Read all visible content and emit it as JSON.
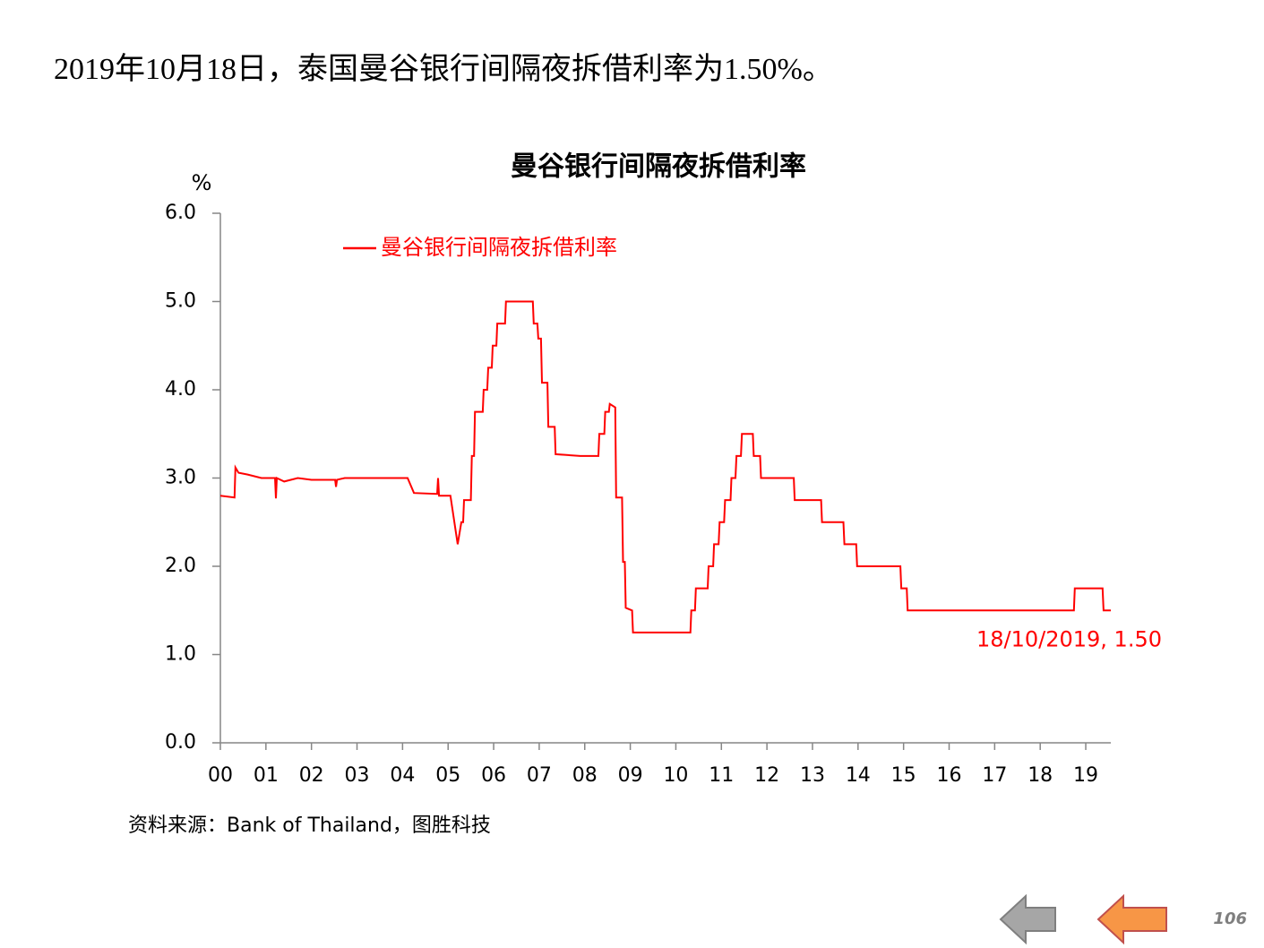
{
  "heading": "2019年10月18日，泰国曼谷银行间隔夜拆借利率为1.50%。",
  "chart_data": {
    "type": "line",
    "title": "曼谷银行间隔夜拆借利率",
    "y_unit": "%",
    "legend": "upper left",
    "annotation": "18/10/2019, 1.50",
    "xlim": [
      2000,
      2019.55
    ],
    "xticks": [
      {
        "value": 2000,
        "label": "00"
      },
      {
        "value": 2001,
        "label": "01"
      },
      {
        "value": 2002,
        "label": "02"
      },
      {
        "value": 2003,
        "label": "03"
      },
      {
        "value": 2004,
        "label": "04"
      },
      {
        "value": 2005,
        "label": "05"
      },
      {
        "value": 2006,
        "label": "06"
      },
      {
        "value": 2007,
        "label": "07"
      },
      {
        "value": 2008,
        "label": "08"
      },
      {
        "value": 2009,
        "label": "09"
      },
      {
        "value": 2010,
        "label": "10"
      },
      {
        "value": 2011,
        "label": "11"
      },
      {
        "value": 2012,
        "label": "12"
      },
      {
        "value": 2013,
        "label": "13"
      },
      {
        "value": 2014,
        "label": "14"
      },
      {
        "value": 2015,
        "label": "15"
      },
      {
        "value": 2016,
        "label": "16"
      },
      {
        "value": 2017,
        "label": "17"
      },
      {
        "value": 2018,
        "label": "18"
      },
      {
        "value": 2019,
        "label": "19"
      }
    ],
    "ylim": [
      0,
      6
    ],
    "yticks": [
      {
        "value": 0,
        "label": "0.0"
      },
      {
        "value": 1,
        "label": "1.0"
      },
      {
        "value": 2,
        "label": "2.0"
      },
      {
        "value": 3,
        "label": "3.0"
      },
      {
        "value": 4,
        "label": "4.0"
      },
      {
        "value": 5,
        "label": "5.0"
      },
      {
        "value": 6,
        "label": "6.0"
      }
    ],
    "series": [
      {
        "name": "曼谷银行间隔夜拆借利率",
        "color": "#ff0000",
        "x": [
          2000.0,
          2000.31,
          2000.33,
          2000.4,
          2000.6,
          2000.9,
          2001.2,
          2001.22,
          2001.24,
          2001.4,
          2001.7,
          2002.0,
          2002.3,
          2002.52,
          2002.54,
          2002.56,
          2002.73,
          2004.11,
          2004.25,
          2004.76,
          2004.78,
          2004.8,
          2005.05,
          2005.21,
          2005.29,
          2005.33,
          2005.35,
          2005.5,
          2005.52,
          2005.57,
          2005.59,
          2005.76,
          2005.78,
          2005.86,
          2005.88,
          2005.96,
          2005.98,
          2006.06,
          2006.08,
          2006.25,
          2006.27,
          2006.86,
          2006.88,
          2006.96,
          2006.98,
          2007.04,
          2007.06,
          2007.18,
          2007.2,
          2007.34,
          2007.36,
          2007.9,
          2008.3,
          2008.32,
          2008.43,
          2008.45,
          2008.53,
          2008.55,
          2008.67,
          2008.69,
          2008.82,
          2008.84,
          2008.88,
          2008.9,
          2009.04,
          2009.06,
          2010.32,
          2010.34,
          2010.42,
          2010.44,
          2010.7,
          2010.72,
          2010.82,
          2010.84,
          2010.94,
          2010.96,
          2011.06,
          2011.08,
          2011.2,
          2011.22,
          2011.31,
          2011.33,
          2011.43,
          2011.45,
          2011.69,
          2011.71,
          2011.85,
          2011.87,
          2012.59,
          2012.61,
          2013.19,
          2013.21,
          2013.68,
          2013.7,
          2013.96,
          2013.98,
          2014.93,
          2014.95,
          2015.07,
          2015.09,
          2018.74,
          2018.76,
          2019.37,
          2019.39,
          2019.55
        ],
        "values": [
          2.8,
          2.78,
          3.12,
          3.06,
          3.04,
          3.0,
          3.0,
          2.77,
          3.0,
          2.96,
          3.0,
          2.98,
          2.98,
          2.98,
          2.9,
          2.98,
          3.0,
          3.0,
          2.83,
          2.82,
          3.0,
          2.8,
          2.8,
          2.25,
          2.5,
          2.5,
          2.75,
          2.75,
          3.25,
          3.25,
          3.75,
          3.75,
          4.0,
          4.0,
          4.25,
          4.25,
          4.5,
          4.5,
          4.75,
          4.75,
          5.0,
          5.0,
          4.75,
          4.75,
          4.58,
          4.58,
          4.08,
          4.08,
          3.58,
          3.58,
          3.27,
          3.25,
          3.25,
          3.5,
          3.5,
          3.75,
          3.75,
          3.84,
          3.8,
          2.78,
          2.78,
          2.05,
          2.05,
          1.53,
          1.5,
          1.25,
          1.25,
          1.5,
          1.5,
          1.75,
          1.75,
          2.0,
          2.0,
          2.25,
          2.25,
          2.5,
          2.5,
          2.75,
          2.75,
          3.0,
          3.0,
          3.25,
          3.25,
          3.5,
          3.5,
          3.25,
          3.25,
          3.0,
          3.0,
          2.75,
          2.75,
          2.5,
          2.5,
          2.25,
          2.25,
          2.0,
          2.0,
          1.75,
          1.75,
          1.5,
          1.5,
          1.75,
          1.75,
          1.5,
          1.5
        ]
      }
    ]
  },
  "source": "资料来源：Bank of Thailand，图胜科技",
  "page_number": "106"
}
